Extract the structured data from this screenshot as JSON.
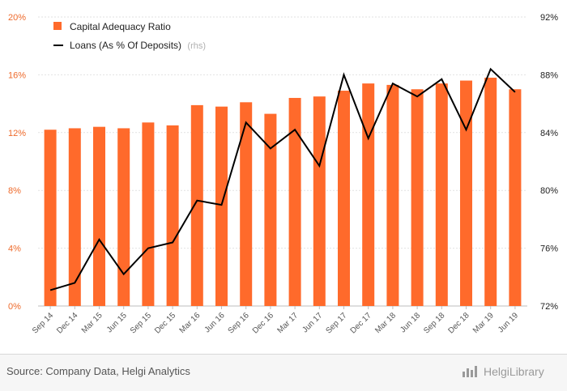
{
  "chart_data": {
    "type": "bar",
    "categories": [
      "Sep 14",
      "Dec 14",
      "Mar 15",
      "Jun 15",
      "Sep 15",
      "Dec 15",
      "Mar 16",
      "Jun 16",
      "Sep 16",
      "Dec 16",
      "Mar 17",
      "Jun 17",
      "Sep 17",
      "Dec 17",
      "Mar 18",
      "Jun 18",
      "Sep 18",
      "Dec 18",
      "Mar 19",
      "Jun 19"
    ],
    "series": [
      {
        "name": "Capital Adequacy Ratio",
        "type": "bar",
        "axis": "left",
        "color": "#ff6a2b",
        "values": [
          12.2,
          12.3,
          12.4,
          12.3,
          12.7,
          12.5,
          13.9,
          13.8,
          14.1,
          13.3,
          14.4,
          14.5,
          14.9,
          15.4,
          15.3,
          15.0,
          15.4,
          15.6,
          15.8,
          15.0
        ]
      },
      {
        "name": "Loans (As % Of Deposits)",
        "type": "line",
        "axis": "right",
        "color": "#000000",
        "values": [
          73.1,
          73.6,
          76.6,
          74.2,
          76.0,
          76.4,
          79.3,
          79.0,
          84.7,
          82.9,
          84.2,
          81.7,
          88.0,
          83.6,
          87.4,
          86.5,
          87.7,
          84.2,
          88.4,
          86.8
        ]
      }
    ],
    "legend": {
      "items": [
        "Capital Adequacy Ratio",
        "Loans (As % Of Deposits)"
      ],
      "rhs_note": "(rhs)",
      "placement": "top-left"
    },
    "y_left": {
      "ticks": [
        "0%",
        "4%",
        "8%",
        "12%",
        "16%",
        "20%"
      ],
      "ylim": [
        0,
        20
      ]
    },
    "y_right": {
      "ticks": [
        "72%",
        "76%",
        "80%",
        "84%",
        "88%",
        "92%"
      ],
      "ylim": [
        72,
        92
      ]
    },
    "grid": true
  },
  "footer": {
    "source": "Source: Company Data, Helgi Analytics",
    "brand": "HelgiLibrary"
  }
}
